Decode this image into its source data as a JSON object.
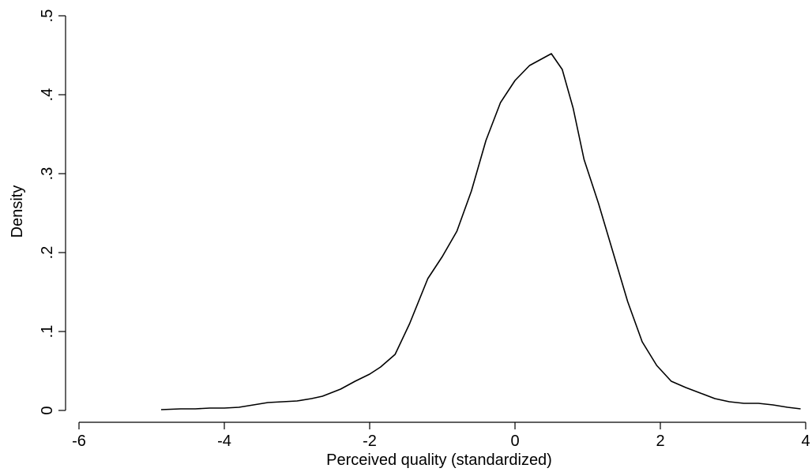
{
  "chart_data": {
    "type": "line",
    "xlabel": "Perceived quality (standardized)",
    "ylabel": "Density",
    "xlim": [
      -6,
      4
    ],
    "ylim": [
      0,
      0.5
    ],
    "x_ticks": [
      {
        "value": -6,
        "label": "-6"
      },
      {
        "value": -4,
        "label": "-4"
      },
      {
        "value": -2,
        "label": "-2"
      },
      {
        "value": 0,
        "label": "0"
      },
      {
        "value": 2,
        "label": "2"
      },
      {
        "value": 4,
        "label": "4"
      }
    ],
    "y_ticks": [
      {
        "value": 0,
        "label": "0"
      },
      {
        "value": 0.1,
        "label": ".1"
      },
      {
        "value": 0.2,
        "label": ".2"
      },
      {
        "value": 0.3,
        "label": ".3"
      },
      {
        "value": 0.4,
        "label": ".4"
      },
      {
        "value": 0.5,
        "label": ".5"
      }
    ],
    "grid": false,
    "series": [
      {
        "points": [
          [
            -4.87,
            0.001
          ],
          [
            -4.6,
            0.002
          ],
          [
            -4.4,
            0.002
          ],
          [
            -4.2,
            0.003
          ],
          [
            -4.0,
            0.003
          ],
          [
            -3.8,
            0.004
          ],
          [
            -3.6,
            0.007
          ],
          [
            -3.4,
            0.01
          ],
          [
            -3.2,
            0.011
          ],
          [
            -3.0,
            0.012
          ],
          [
            -2.8,
            0.015
          ],
          [
            -2.65,
            0.018
          ],
          [
            -2.4,
            0.027
          ],
          [
            -2.2,
            0.037
          ],
          [
            -2.0,
            0.046
          ],
          [
            -1.85,
            0.055
          ],
          [
            -1.65,
            0.071
          ],
          [
            -1.45,
            0.11
          ],
          [
            -1.2,
            0.167
          ],
          [
            -1.0,
            0.195
          ],
          [
            -0.8,
            0.227
          ],
          [
            -0.6,
            0.278
          ],
          [
            -0.4,
            0.342
          ],
          [
            -0.2,
            0.39
          ],
          [
            0.0,
            0.418
          ],
          [
            0.2,
            0.437
          ],
          [
            0.4,
            0.447
          ],
          [
            0.5,
            0.452
          ],
          [
            0.65,
            0.432
          ],
          [
            0.8,
            0.383
          ],
          [
            0.95,
            0.318
          ],
          [
            1.15,
            0.262
          ],
          [
            1.35,
            0.2
          ],
          [
            1.55,
            0.138
          ],
          [
            1.75,
            0.087
          ],
          [
            1.95,
            0.057
          ],
          [
            2.15,
            0.037
          ],
          [
            2.35,
            0.029
          ],
          [
            2.55,
            0.022
          ],
          [
            2.75,
            0.015
          ],
          [
            2.95,
            0.011
          ],
          [
            3.15,
            0.009
          ],
          [
            3.35,
            0.009
          ],
          [
            3.55,
            0.007
          ],
          [
            3.75,
            0.004
          ],
          [
            3.93,
            0.002
          ]
        ]
      }
    ]
  }
}
